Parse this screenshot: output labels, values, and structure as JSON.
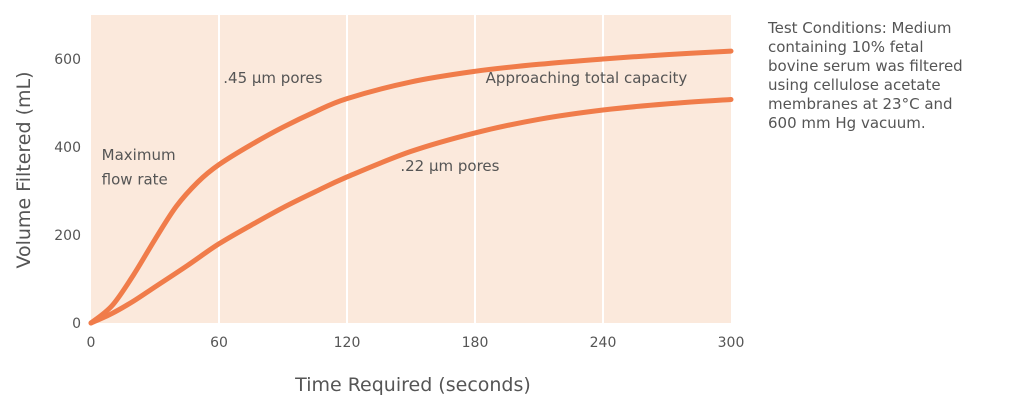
{
  "chart_data": {
    "type": "line",
    "xlabel": "Time Required (seconds)",
    "ylabel": "Volume Filtered (mL)",
    "xlim": [
      0,
      300
    ],
    "ylim": [
      0,
      700
    ],
    "xticks": [
      0,
      60,
      120,
      180,
      240,
      300
    ],
    "yticks": [
      0,
      200,
      400,
      600
    ],
    "grid": "vertical",
    "series": [
      {
        "name": ".45 µm pores",
        "points": [
          [
            0,
            0
          ],
          [
            10,
            40
          ],
          [
            20,
            110
          ],
          [
            30,
            190
          ],
          [
            40,
            265
          ],
          [
            50,
            320
          ],
          [
            60,
            360
          ],
          [
            75,
            405
          ],
          [
            90,
            445
          ],
          [
            105,
            480
          ],
          [
            120,
            510
          ],
          [
            150,
            548
          ],
          [
            180,
            572
          ],
          [
            210,
            588
          ],
          [
            240,
            600
          ],
          [
            270,
            610
          ],
          [
            300,
            618
          ]
        ]
      },
      {
        "name": ".22 µm pores",
        "points": [
          [
            0,
            0
          ],
          [
            10,
            22
          ],
          [
            20,
            50
          ],
          [
            30,
            82
          ],
          [
            45,
            130
          ],
          [
            60,
            180
          ],
          [
            75,
            222
          ],
          [
            90,
            262
          ],
          [
            105,
            298
          ],
          [
            120,
            332
          ],
          [
            150,
            390
          ],
          [
            180,
            432
          ],
          [
            210,
            463
          ],
          [
            240,
            484
          ],
          [
            270,
            498
          ],
          [
            300,
            508
          ]
        ]
      }
    ],
    "annotations": [
      {
        "text": ".45 µm pores",
        "x": 62,
        "y": 545
      },
      {
        "text": ".22 µm pores",
        "x": 145,
        "y": 345
      },
      {
        "text": "Maximum",
        "x": 5,
        "y": 370
      },
      {
        "text": "flow rate",
        "x": 5,
        "y": 315
      },
      {
        "text": "Approaching total capacity",
        "x": 185,
        "y": 545
      }
    ]
  },
  "note": "Test Conditions: Medium\ncontaining 10% fetal\nbovine serum was filtered\nusing cellulose acetate\nmembranes at 23°C and\n600 mm Hg vacuum.",
  "colors": {
    "plot_background": "#fbe9dc",
    "series_line": "#f07c4a",
    "grid": "#ffffff",
    "text": "#555555"
  }
}
